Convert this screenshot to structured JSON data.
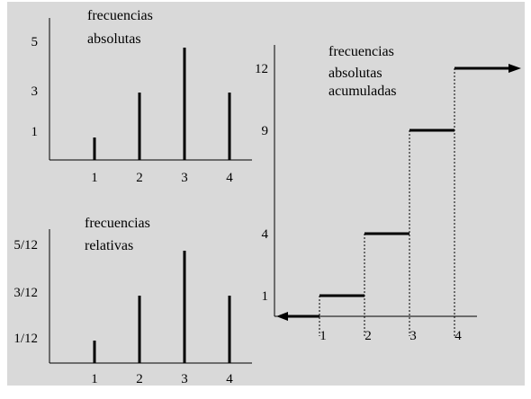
{
  "colors": {
    "background": "#d9d9d9",
    "marks": "#000000"
  },
  "chart_data": [
    {
      "type": "bar",
      "title_lines": [
        "frecuencias",
        "absolutas"
      ],
      "categories": [
        "1",
        "2",
        "3",
        "4"
      ],
      "values": [
        1,
        3,
        5,
        3
      ],
      "yticks": [
        "1",
        "3",
        "5"
      ],
      "ylim": [
        0,
        6
      ],
      "style": "stick"
    },
    {
      "type": "bar",
      "title_lines": [
        "frecuencias",
        "relativas"
      ],
      "categories": [
        "1",
        "2",
        "3",
        "4"
      ],
      "values": [
        0.0833,
        0.25,
        0.4167,
        0.25
      ],
      "yticks": [
        "1/12",
        "3/12",
        "5/12"
      ],
      "ylim": [
        0,
        0.5
      ],
      "style": "stick"
    },
    {
      "type": "line",
      "style": "step",
      "title_lines": [
        "frecuencias",
        "absolutas",
        "acumuladas"
      ],
      "x": [
        1,
        2,
        3,
        4
      ],
      "values": [
        1,
        4,
        9,
        12
      ],
      "xticks": [
        "1",
        "2",
        "3",
        "4"
      ],
      "yticks": [
        "1",
        "4",
        "9",
        "12"
      ],
      "xlim": [
        0,
        4.6
      ],
      "ylim": [
        0,
        12.5
      ]
    }
  ]
}
